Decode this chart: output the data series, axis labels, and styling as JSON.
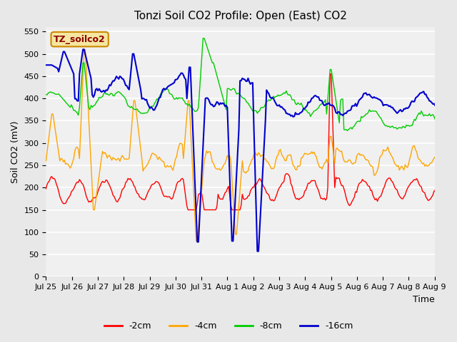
{
  "title": "Tonzi Soil CO2 Profile: Open (East) CO2",
  "ylabel": "Soil CO2 (mV)",
  "xlabel": "Time",
  "legend_label": "TZ_soilco2",
  "series_labels": [
    "-2cm",
    "-4cm",
    "-8cm",
    "-16cm"
  ],
  "series_colors": [
    "#ff0000",
    "#ffa500",
    "#00cc00",
    "#0000cc"
  ],
  "ylim": [
    0,
    560
  ],
  "yticks": [
    0,
    50,
    100,
    150,
    200,
    250,
    300,
    350,
    400,
    450,
    500,
    550
  ],
  "background_color": "#e8e8e8",
  "plot_bg_color": "#f0f0f0",
  "n_points": 360
}
